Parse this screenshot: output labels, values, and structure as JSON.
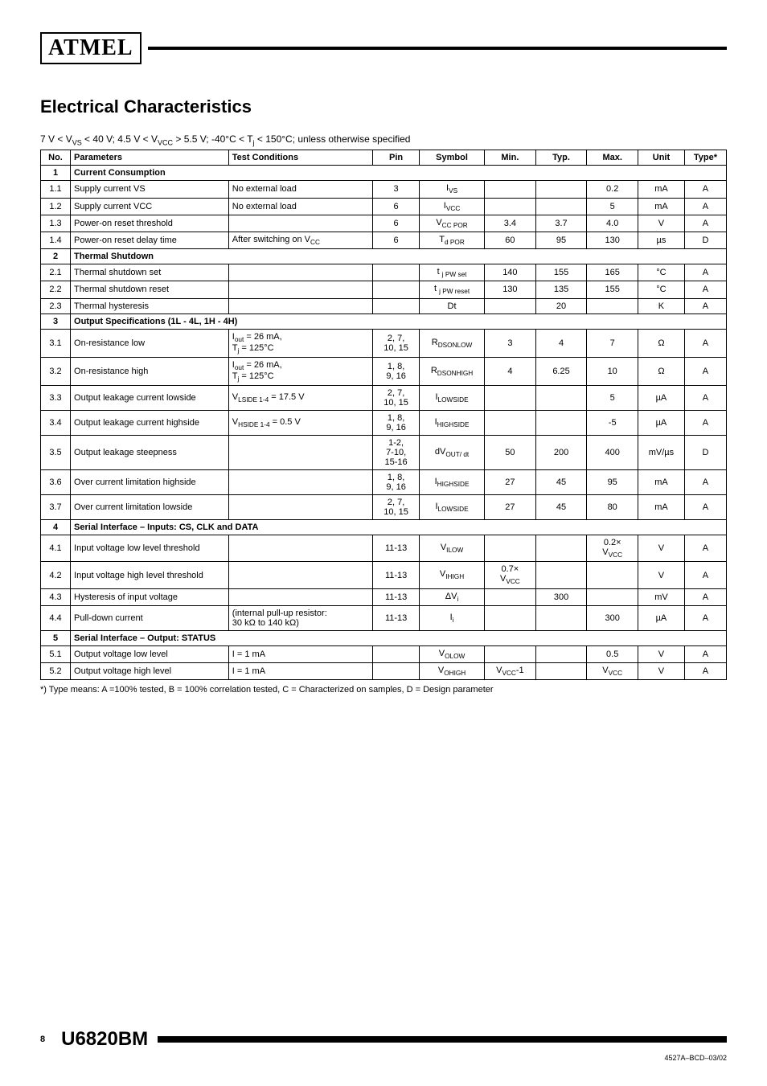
{
  "header": {
    "logo_text": "ATMEL"
  },
  "title": "Electrical Characteristics",
  "conditions_html": "7 V < V<sub>VS</sub> < 40 V; 4.5 V < V<sub>VCC</sub> > 5.5 V; -40°C < T<sub>j</sub> < 150°C; unless otherwise specified",
  "columns": [
    "No.",
    "Parameters",
    "Test Conditions",
    "Pin",
    "Symbol",
    "Min.",
    "Typ.",
    "Max.",
    "Unit",
    "Type*"
  ],
  "rows": [
    {
      "section": true,
      "no": "1",
      "label": "Current Consumption"
    },
    {
      "no": "1.1",
      "param": "Supply current VS",
      "cond": "No external load",
      "pin": "3",
      "sym": "I<sub>VS</sub>",
      "min": "",
      "typ": "",
      "max": "0.2",
      "unit": "mA",
      "type": "A"
    },
    {
      "no": "1.2",
      "param": "Supply current VCC",
      "cond": "No external load",
      "pin": "6",
      "sym": "I<sub>VCC</sub>",
      "min": "",
      "typ": "",
      "max": "5",
      "unit": "mA",
      "type": "A"
    },
    {
      "no": "1.3",
      "param": "Power-on reset threshold",
      "cond": "",
      "pin": "6",
      "sym": "V<sub>CC POR</sub>",
      "min": "3.4",
      "typ": "3.7",
      "max": "4.0",
      "unit": "V",
      "type": "A"
    },
    {
      "no": "1.4",
      "param": "Power-on reset delay time",
      "cond": "After switching on V<sub>CC</sub>",
      "pin": "6",
      "sym": "T<sub>d POR</sub>",
      "min": "60",
      "typ": "95",
      "max": "130",
      "unit": "µs",
      "type": "D"
    },
    {
      "section": true,
      "no": "2",
      "label": "Thermal Shutdown"
    },
    {
      "no": "2.1",
      "param": "Thermal shutdown set",
      "cond": "",
      "pin": "",
      "sym": "t <sub>j PW set</sub>",
      "min": "140",
      "typ": "155",
      "max": "165",
      "unit": "°C",
      "type": "A"
    },
    {
      "no": "2.2",
      "param": "Thermal shutdown reset",
      "cond": "",
      "pin": "",
      "sym": "t <sub>j PW reset</sub>",
      "min": "130",
      "typ": "135",
      "max": "155",
      "unit": "°C",
      "type": "A"
    },
    {
      "no": "2.3",
      "param": "Thermal hysteresis",
      "cond": "",
      "pin": "",
      "sym": "Dt",
      "min": "",
      "typ": "20",
      "max": "",
      "unit": "K",
      "type": "A"
    },
    {
      "section": true,
      "no": "3",
      "label": "Output Specifications (1L - 4L, 1H - 4H)"
    },
    {
      "no": "3.1",
      "param": "On-resistance low",
      "cond": "I<sub>out</sub> = 26 mA,<br>T<sub>j</sub> = 125°C",
      "pin": "2, 7,<br>10, 15",
      "sym": "R<sub>DSONLOW</sub>",
      "min": "3",
      "typ": "4",
      "max": "7",
      "unit": "Ω",
      "type": "A"
    },
    {
      "no": "3.2",
      "param": "On-resistance high",
      "cond": "I<sub>out</sub> = 26 mA,<br>T<sub>j</sub> = 125°C",
      "pin": "1, 8,<br>9, 16",
      "sym": "R<sub>DSONHIGH</sub>",
      "min": "4",
      "typ": "6.25",
      "max": "10",
      "unit": "Ω",
      "type": "A"
    },
    {
      "no": "3.3",
      "param": "Output leakage current lowside",
      "cond": "V<sub>LSIDE 1-4</sub> = 17.5 V",
      "pin": "2, 7,<br>10, 15",
      "sym": "I<sub>LOWSIDE</sub>",
      "min": "",
      "typ": "",
      "max": "5",
      "unit": "µA",
      "type": "A"
    },
    {
      "no": "3.4",
      "param": "Output leakage current highside",
      "cond": "V<sub>HSIDE 1-4</sub> = 0.5 V",
      "pin": "1, 8,<br>9, 16",
      "sym": "I<sub>HIGHSIDE</sub>",
      "min": "",
      "typ": "",
      "max": "-5",
      "unit": "µA",
      "type": "A"
    },
    {
      "no": "3.5",
      "param": "Output leakage steepness",
      "cond": "",
      "pin": "1-2,<br>7-10,<br>15-16",
      "sym": "dV<sub>OUT/ dt</sub>",
      "min": "50",
      "typ": "200",
      "max": "400",
      "unit": "mV/µs",
      "type": "D"
    },
    {
      "no": "3.6",
      "param": "Over current limitation highside",
      "cond": "",
      "pin": "1, 8,<br>9, 16",
      "sym": "I<sub>HIGHSIDE</sub>",
      "min": "27",
      "typ": "45",
      "max": "95",
      "unit": "mA",
      "type": "A"
    },
    {
      "no": "3.7",
      "param": "Over current limitation lowside",
      "cond": "",
      "pin": "2, 7,<br>10, 15",
      "sym": "I<sub>LOWSIDE</sub>",
      "min": "27",
      "typ": "45",
      "max": "80",
      "unit": "mA",
      "type": "A"
    },
    {
      "section": true,
      "no": "4",
      "label": "Serial Interface – Inputs: CS, CLK and DATA"
    },
    {
      "no": "4.1",
      "param": "Input voltage low level threshold",
      "cond": "",
      "pin": "11-13",
      "sym": "V<sub>ILOW</sub>",
      "min": "",
      "typ": "",
      "max": "0.2×<br>V<sub>VCC</sub>",
      "unit": "V",
      "type": "A"
    },
    {
      "no": "4.2",
      "param": "Input voltage high level threshold",
      "cond": "",
      "pin": "11-13",
      "sym": "V<sub>IHIGH</sub>",
      "min": "0.7×<br>V<sub>VCC</sub>",
      "typ": "",
      "max": "",
      "unit": "V",
      "type": "A"
    },
    {
      "no": "4.3",
      "param": "Hysteresis of input voltage",
      "cond": "",
      "pin": "11-13",
      "sym": "ΔV<sub>i</sub>",
      "min": "",
      "typ": "300",
      "max": "",
      "unit": "mV",
      "type": "A"
    },
    {
      "no": "4.4",
      "param": "Pull-down current",
      "cond": "(internal pull-up resistor:<br>30 kΩ to 140 kΩ)",
      "pin": "11-13",
      "sym": "I<sub>i</sub>",
      "min": "",
      "typ": "",
      "max": "300",
      "unit": "µA",
      "type": "A"
    },
    {
      "section": true,
      "no": "5",
      "label": "Serial Interface – Output: STATUS"
    },
    {
      "no": "5.1",
      "param": "Output voltage low level",
      "cond": "I = 1 mA",
      "pin": "",
      "sym": "V<sub>OLOW</sub>",
      "min": "",
      "typ": "",
      "max": "0.5",
      "unit": "V",
      "type": "A"
    },
    {
      "no": "5.2",
      "param": "Output voltage high level",
      "cond": "I = 1 mA",
      "pin": "",
      "sym": "V<sub>OHIGH</sub>",
      "min": "V<sub>VCC</sub>-1",
      "typ": "",
      "max": "V<sub>VCC</sub>",
      "unit": "V",
      "type": "A"
    }
  ],
  "footnote": "*) Type means: A =100% tested, B = 100% correlation tested, C = Characterized on samples, D = Design parameter",
  "footer": {
    "page": "8",
    "part": "U6820BM",
    "docid": "4527A–BCD–03/02"
  }
}
